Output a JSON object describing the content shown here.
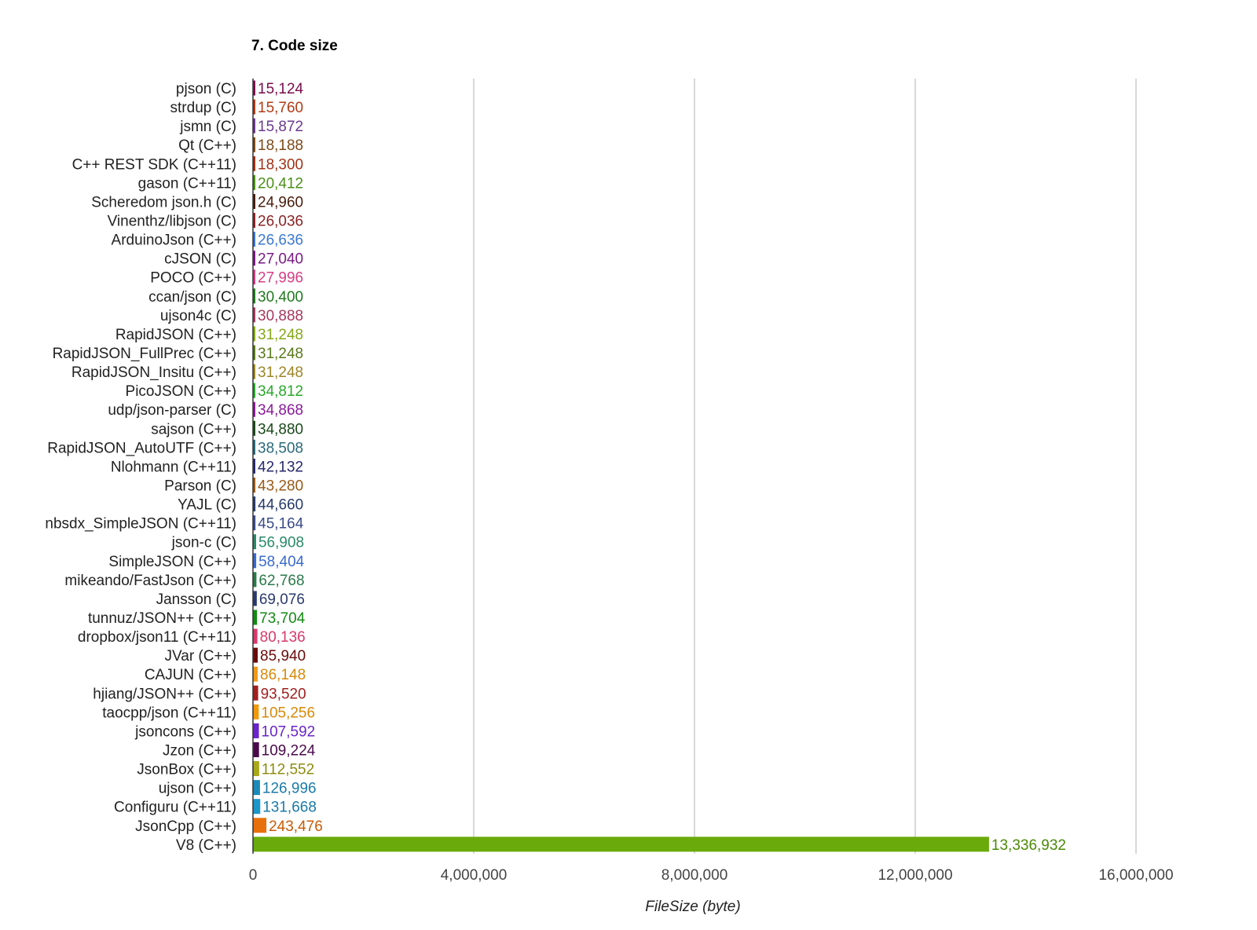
{
  "chart_data": {
    "type": "bar",
    "orientation": "horizontal",
    "title": "7. Code size",
    "xlabel": "FileSize (byte)",
    "ylabel": "",
    "xlim": [
      0,
      16000000
    ],
    "x_ticks": [
      0,
      4000000,
      8000000,
      12000000,
      16000000
    ],
    "x_tick_labels": [
      "0",
      "4,000,000",
      "8,000,000",
      "12,000,000",
      "16,000,000"
    ],
    "grid": true,
    "categories": [
      "pjson (C)",
      "strdup (C)",
      "jsmn (C)",
      "Qt (C++)",
      "C++ REST SDK (C++11)",
      "gason (C++11)",
      "Scheredom json.h (C)",
      "Vinenthz/libjson (C)",
      "ArduinoJson (C++)",
      "cJSON (C)",
      "POCO (C++)",
      "ccan/json (C)",
      "ujson4c (C)",
      "RapidJSON (C++)",
      "RapidJSON_FullPrec (C++)",
      "RapidJSON_Insitu (C++)",
      "PicoJSON (C++)",
      "udp/json-parser (C)",
      "sajson (C++)",
      "RapidJSON_AutoUTF (C++)",
      "Nlohmann (C++11)",
      "Parson (C)",
      "YAJL (C)",
      "nbsdx_SimpleJSON (C++11)",
      "json-c (C)",
      "SimpleJSON (C++)",
      "mikeando/FastJson (C++)",
      "Jansson (C)",
      "tunnuz/JSON++ (C++)",
      "dropbox/json11 (C++11)",
      "JVar (C++)",
      "CAJUN (C++)",
      "hjiang/JSON++ (C++)",
      "taocpp/json (C++11)",
      "jsoncons (C++)",
      "Jzon (C++)",
      "JsonBox (C++)",
      "ujson (C++)",
      "Configuru (C++11)",
      "JsonCpp (C++)",
      "V8 (C++)"
    ],
    "values": [
      15124,
      15760,
      15872,
      18188,
      18300,
      20412,
      24960,
      26036,
      26636,
      27040,
      27996,
      30400,
      30888,
      31248,
      31248,
      31248,
      34812,
      34868,
      34880,
      38508,
      42132,
      43280,
      44660,
      45164,
      56908,
      58404,
      62768,
      69076,
      73704,
      80136,
      85940,
      86148,
      93520,
      105256,
      107592,
      109224,
      112552,
      126996,
      131668,
      243476,
      13336932
    ],
    "value_labels": [
      "15,124",
      "15,760",
      "15,872",
      "18,188",
      "18,300",
      "20,412",
      "24,960",
      "26,036",
      "26,636",
      "27,040",
      "27,996",
      "30,400",
      "30,888",
      "31,248",
      "31,248",
      "31,248",
      "34,812",
      "34,868",
      "34,880",
      "38,508",
      "42,132",
      "43,280",
      "44,660",
      "45,164",
      "56,908",
      "58,404",
      "62,768",
      "69,076",
      "73,704",
      "80,136",
      "85,940",
      "86,148",
      "93,520",
      "105,256",
      "107,592",
      "109,224",
      "112,552",
      "126,996",
      "131,668",
      "243,476",
      "13,336,932"
    ],
    "colors": [
      "#7b0c4a",
      "#b33b15",
      "#6b3a8e",
      "#7d4a19",
      "#a23216",
      "#4a8f16",
      "#4a1c0c",
      "#8c2224",
      "#3a78d0",
      "#7a1a86",
      "#d63d84",
      "#1e7a1e",
      "#a8385e",
      "#86a818",
      "#5a7a1a",
      "#9c8626",
      "#2aa82a",
      "#8a1a9a",
      "#1a4a1a",
      "#2a6a7a",
      "#26286e",
      "#9a5a1a",
      "#263a6a",
      "#3a4a8a",
      "#2a8a6a",
      "#3a6ad0",
      "#2a7a4a",
      "#2a3a6e",
      "#148a14",
      "#d63a6a",
      "#6a0a0a",
      "#f09a1a",
      "#a22020",
      "#f09a0a",
      "#6a26c8",
      "#4a0a4a",
      "#a8a81a",
      "#1a8ab8",
      "#1a96c8",
      "#e8700a",
      "#6aaa0a"
    ],
    "label_colors": [
      "#7b0c4a",
      "#b33b15",
      "#6b3a8e",
      "#7d4a19",
      "#a23216",
      "#4a8f16",
      "#4a1c0c",
      "#8c2224",
      "#3a78d0",
      "#7a1a86",
      "#d63d84",
      "#1e7a1e",
      "#a8385e",
      "#86a818",
      "#5a7a1a",
      "#9c8626",
      "#2aa82a",
      "#8a1a9a",
      "#1a4a1a",
      "#2a6a7a",
      "#26286e",
      "#9a5a1a",
      "#263a6a",
      "#3a4a8a",
      "#2a8a6a",
      "#3a6ad0",
      "#2a7a4a",
      "#2a3a6e",
      "#148a14",
      "#d63a6a",
      "#6a0a0a",
      "#d9890a",
      "#a22020",
      "#d9890a",
      "#6a26c8",
      "#4a0a4a",
      "#8c8c10",
      "#1a7aa8",
      "#1a7aa8",
      "#c85a06",
      "#4a8a06"
    ]
  }
}
